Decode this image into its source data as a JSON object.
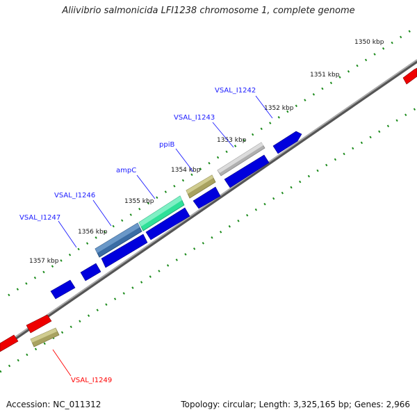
{
  "title": "Aliivibrio salmonicida LFI1238 chromosome 1, complete genome",
  "footer": {
    "accession": "Accession: NC_011312",
    "stats": "Topology: circular; Length: 3,325,165 bp; Genes: 2,966"
  },
  "ruler_ticks": [
    "1350 kbp",
    "1351 kbp",
    "1352 kbp",
    "1353 kbp",
    "1354 kbp",
    "1355 kbp",
    "1356 kbp",
    "1357 kbp"
  ],
  "gene_labels": [
    {
      "id": "VSAL_I1242",
      "text": "VSAL_I1242",
      "color": "#1a1aff"
    },
    {
      "id": "VSAL_I1243",
      "text": "VSAL_I1243",
      "color": "#1a1aff"
    },
    {
      "id": "ppiB",
      "text": "ppiB",
      "color": "#1a1aff"
    },
    {
      "id": "ampC",
      "text": "ampC",
      "color": "#1a1aff"
    },
    {
      "id": "VSAL_I1246",
      "text": "VSAL_I1246",
      "color": "#1a1aff"
    },
    {
      "id": "VSAL_I1247",
      "text": "VSAL_I1247",
      "color": "#1a1aff"
    },
    {
      "id": "VSAL_I1249",
      "text": "VSAL_I1249",
      "color": "#ff0000"
    }
  ],
  "colors": {
    "forward_cds": "#0000ee",
    "reverse_cds": "#ee0000",
    "backbone": "#777777",
    "tick_dots": "#1a8a1a",
    "ampC": "#33e8a0",
    "VSAL_I1246": "#3d6fa8",
    "ppiB": "#b5b06a",
    "VSAL_I1243": "#b8b8b8",
    "VSAL_I1249": "#b5b06a"
  }
}
